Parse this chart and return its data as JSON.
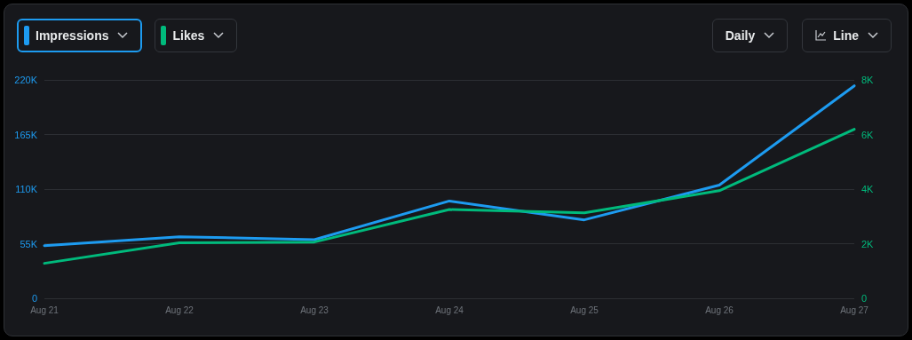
{
  "chart_data": {
    "type": "line",
    "categories": [
      "Aug 21",
      "Aug 22",
      "Aug 23",
      "Aug 24",
      "Aug 25",
      "Aug 26",
      "Aug 27"
    ],
    "series": [
      {
        "name": "Impressions",
        "color": "#1d9bf0",
        "values": [
          53000,
          62000,
          59000,
          98000,
          79000,
          114000,
          214000
        ]
      },
      {
        "name": "Likes",
        "color": "#00ba7c",
        "axis": "y2",
        "values": [
          1280,
          2030,
          2060,
          3250,
          3130,
          3940,
          6190
        ]
      }
    ],
    "ylim": [
      0,
      220000
    ],
    "yticks": [
      0,
      {
        "value": 55000,
        "label": "55K"
      },
      {
        "value": 110000,
        "label": "110K"
      },
      {
        "value": 165000,
        "label": "165K"
      },
      {
        "value": 220000,
        "label": "220K"
      }
    ],
    "y2lim": [
      0,
      8000
    ],
    "y2ticks": [
      0,
      {
        "value": 2000,
        "label": "2K"
      },
      {
        "value": 4000,
        "label": "4K"
      },
      {
        "value": 6000,
        "label": "6K"
      },
      {
        "value": 8000,
        "label": "8K"
      }
    ],
    "grid": "y",
    "legend": "top left",
    "marker": "none",
    "line_style": "solid",
    "annotations": [
      "Daily",
      "Line"
    ]
  }
}
